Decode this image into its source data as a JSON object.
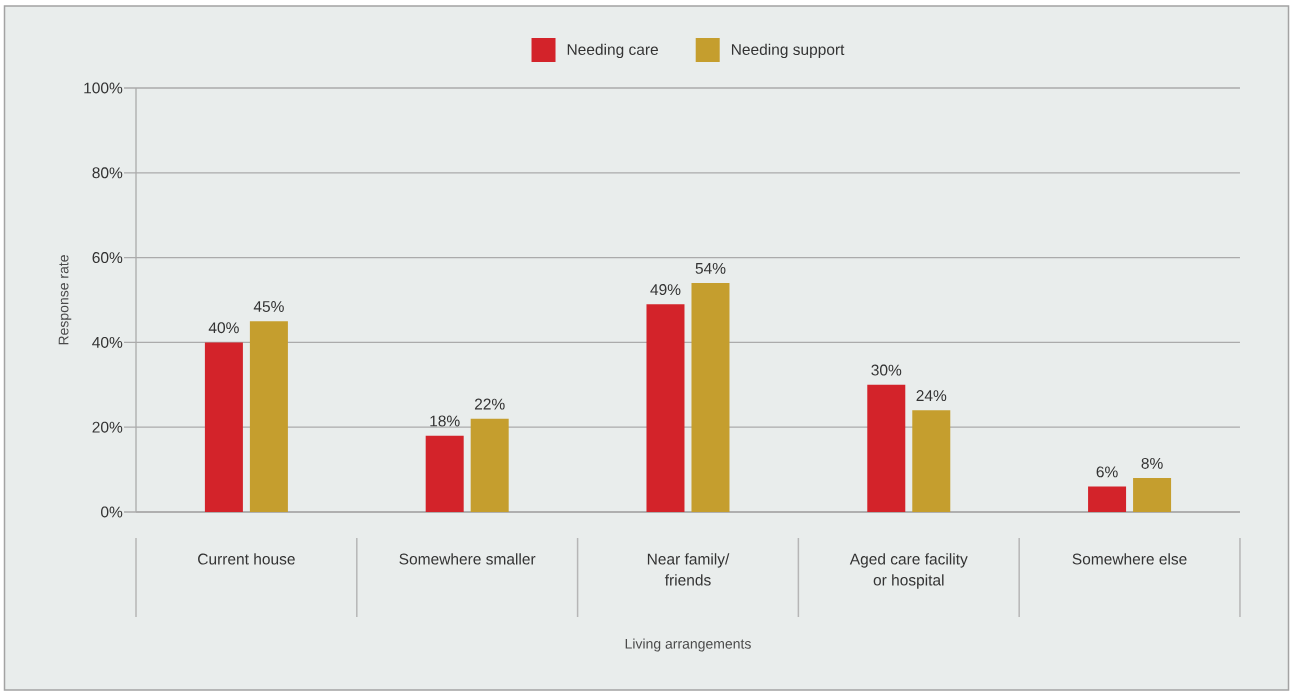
{
  "chart_data": {
    "type": "bar",
    "xlabel": "Living arrangements",
    "ylabel": "Response rate",
    "categories": [
      "Current house",
      "Somewhere smaller",
      "Near family/ friends",
      "Aged care facility or hospital",
      "Somewhere else"
    ],
    "series": [
      {
        "name": "Needing care",
        "color": "#d3232a",
        "values": [
          40,
          18,
          49,
          30,
          6
        ],
        "value_labels": [
          "40%",
          "18%",
          "49%",
          "30%",
          "6%"
        ]
      },
      {
        "name": "Needing support",
        "color": "#c59e2e",
        "values": [
          45,
          22,
          54,
          24,
          8
        ],
        "value_labels": [
          "45%",
          "22%",
          "54%",
          "24%",
          "8%"
        ]
      }
    ],
    "ylim": [
      0,
      100
    ],
    "yticks": [
      {
        "value": 0,
        "label": "0%"
      },
      {
        "value": 20,
        "label": "20%"
      },
      {
        "value": 40,
        "label": "40%"
      },
      {
        "value": 60,
        "label": "60%"
      },
      {
        "value": 80,
        "label": "80%"
      },
      {
        "value": 100,
        "label": "100%"
      }
    ],
    "grid": "y",
    "legend": "top"
  }
}
